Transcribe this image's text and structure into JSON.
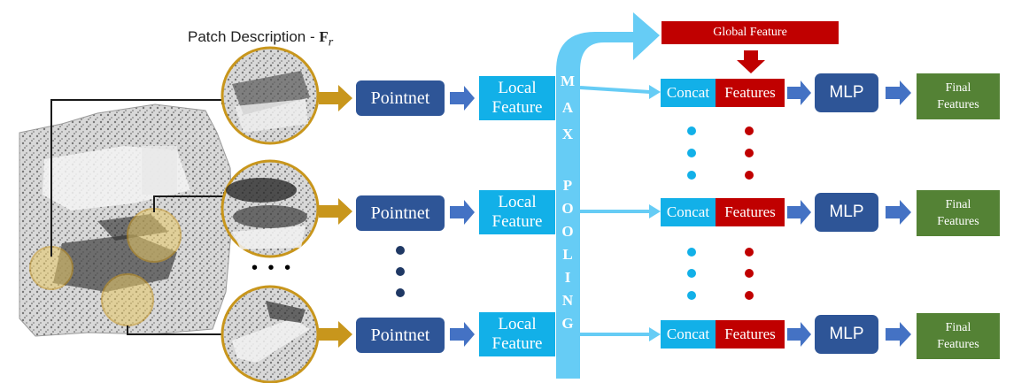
{
  "patch_description": {
    "label": "Patch Description - ",
    "symbol": "F",
    "subscript": "r"
  },
  "rows": [
    {
      "pointnet": "Pointnet",
      "local_feature": "Local\nFeature",
      "concat": "Concat",
      "features": "Features",
      "mlp": "MLP",
      "final": "Final\nFeatures"
    },
    {
      "pointnet": "Pointnet",
      "local_feature": "Local\nFeature",
      "concat": "Concat",
      "features": "Features",
      "mlp": "MLP",
      "final": "Final\nFeatures"
    },
    {
      "pointnet": "Pointnet",
      "local_feature": "Local\nFeature",
      "concat": "Concat",
      "features": "Features",
      "mlp": "MLP",
      "final": "Final\nFeatures"
    }
  ],
  "global_feature": "Global Feature",
  "max_pooling_letters": [
    "M",
    "A",
    "X",
    "P",
    "O",
    "O",
    "L",
    "I",
    "N",
    "G"
  ],
  "ellipsis": "• • •",
  "colors": {
    "dark_blue": "#2e5597",
    "light_blue": "#12b0e8",
    "pool_blue": "#66ccf5",
    "red": "#c00000",
    "green": "#548235",
    "gold": "#c8961c"
  }
}
